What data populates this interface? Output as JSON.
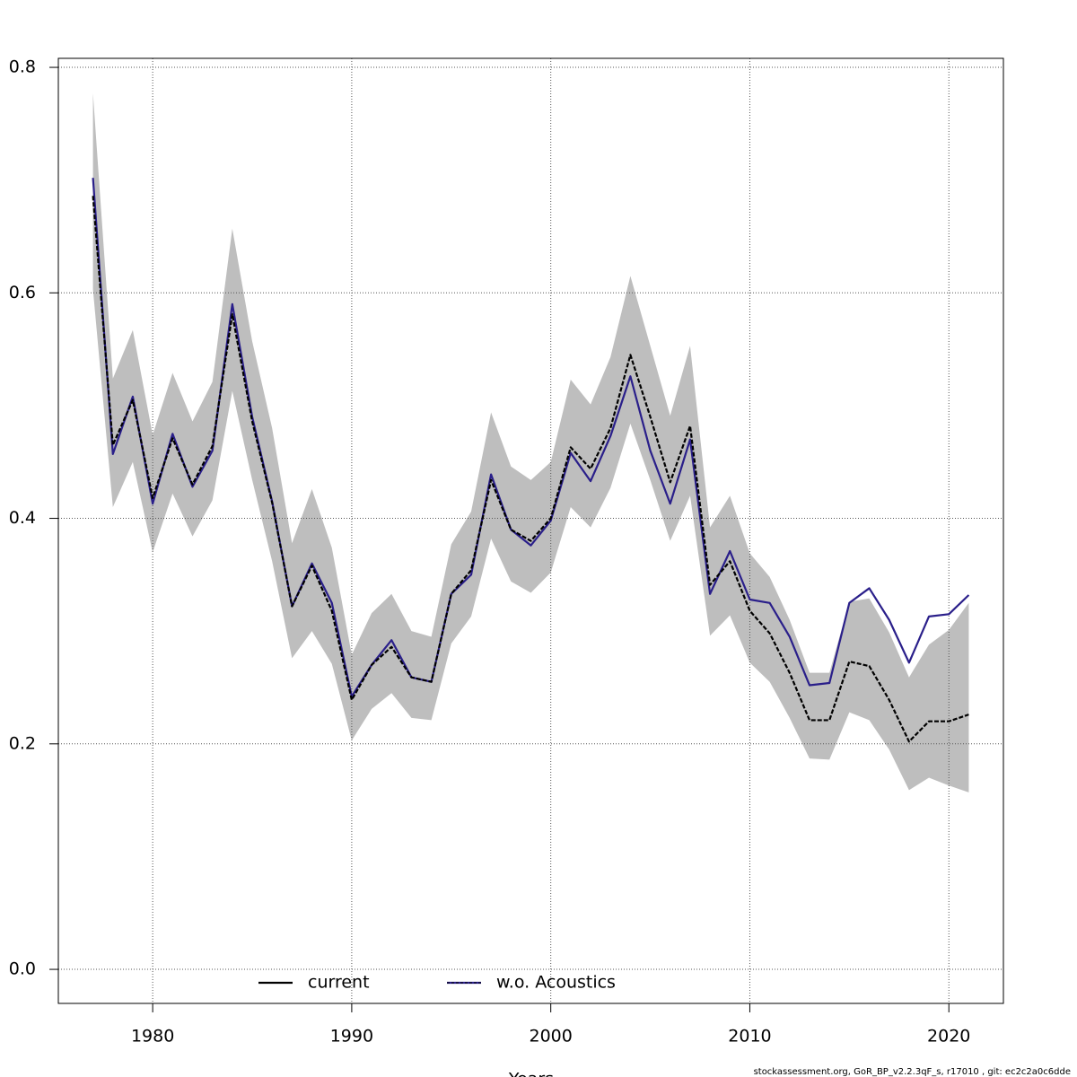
{
  "chart_data": {
    "type": "line",
    "xlabel": "Years",
    "footer": "stockassessment.org, GoR_BP_v2.2.3qF_s, r17010 , git: ec2c2a0c6dde",
    "x": [
      1977,
      1978,
      1979,
      1980,
      1981,
      1982,
      1983,
      1984,
      1985,
      1986,
      1987,
      1988,
      1989,
      1990,
      1991,
      1992,
      1993,
      1994,
      1995,
      1996,
      1997,
      1998,
      1999,
      2000,
      2001,
      2002,
      2003,
      2004,
      2005,
      2006,
      2007,
      2008,
      2009,
      2010,
      2011,
      2012,
      2013,
      2014,
      2015,
      2016,
      2017,
      2018,
      2019,
      2020,
      2021
    ],
    "band": {
      "color": "#bebebe",
      "upper": [
        0.777,
        0.524,
        0.567,
        0.474,
        0.529,
        0.486,
        0.521,
        0.657,
        0.557,
        0.48,
        0.378,
        0.426,
        0.374,
        0.279,
        0.316,
        0.333,
        0.3,
        0.295,
        0.377,
        0.406,
        0.494,
        0.446,
        0.434,
        0.45,
        0.523,
        0.501,
        0.543,
        0.615,
        0.553,
        0.491,
        0.553,
        0.392,
        0.42,
        0.369,
        0.348,
        0.31,
        0.263,
        0.263,
        0.326,
        0.329,
        0.299,
        0.259,
        0.288,
        0.301,
        0.325
      ],
      "lower": [
        0.603,
        0.41,
        0.45,
        0.37,
        0.422,
        0.384,
        0.416,
        0.513,
        0.434,
        0.362,
        0.276,
        0.3,
        0.271,
        0.203,
        0.231,
        0.245,
        0.223,
        0.221,
        0.289,
        0.313,
        0.382,
        0.344,
        0.334,
        0.352,
        0.41,
        0.392,
        0.427,
        0.484,
        0.434,
        0.38,
        0.42,
        0.296,
        0.314,
        0.272,
        0.255,
        0.223,
        0.187,
        0.186,
        0.228,
        0.221,
        0.195,
        0.159,
        0.17,
        0.163,
        0.157
      ]
    },
    "series": [
      {
        "name": "current",
        "color": "#000000",
        "values": [
          0.686,
          0.465,
          0.505,
          0.418,
          0.471,
          0.43,
          0.464,
          0.581,
          0.486,
          0.414,
          0.322,
          0.358,
          0.318,
          0.239,
          0.27,
          0.286,
          0.259,
          0.255,
          0.333,
          0.354,
          0.434,
          0.39,
          0.38,
          0.4,
          0.463,
          0.444,
          0.48,
          0.545,
          0.49,
          0.432,
          0.482,
          0.341,
          0.362,
          0.318,
          0.298,
          0.263,
          0.221,
          0.221,
          0.273,
          0.269,
          0.239,
          0.202,
          0.22,
          0.22,
          0.226
        ]
      },
      {
        "name": "w.o. Acoustics",
        "color": "#2a1f8a",
        "values": [
          0.702,
          0.457,
          0.508,
          0.413,
          0.475,
          0.428,
          0.46,
          0.59,
          0.49,
          0.415,
          0.322,
          0.36,
          0.325,
          0.242,
          0.27,
          0.292,
          0.259,
          0.255,
          0.333,
          0.35,
          0.439,
          0.39,
          0.376,
          0.398,
          0.458,
          0.433,
          0.473,
          0.526,
          0.46,
          0.413,
          0.47,
          0.333,
          0.371,
          0.328,
          0.325,
          0.295,
          0.252,
          0.254,
          0.325,
          0.338,
          0.31,
          0.272,
          0.313,
          0.315,
          0.332
        ]
      }
    ],
    "xlim": [
      1975.26,
      2022.74
    ],
    "ylim": [
      -0.0302,
      0.808
    ],
    "xticks": [
      1980,
      1990,
      2000,
      2010,
      2020
    ],
    "yticks": [
      {
        "value": 0,
        "label": "0.0"
      },
      0.2,
      0.4,
      0.6,
      0.8
    ],
    "grid": true,
    "legend": "bottom"
  }
}
